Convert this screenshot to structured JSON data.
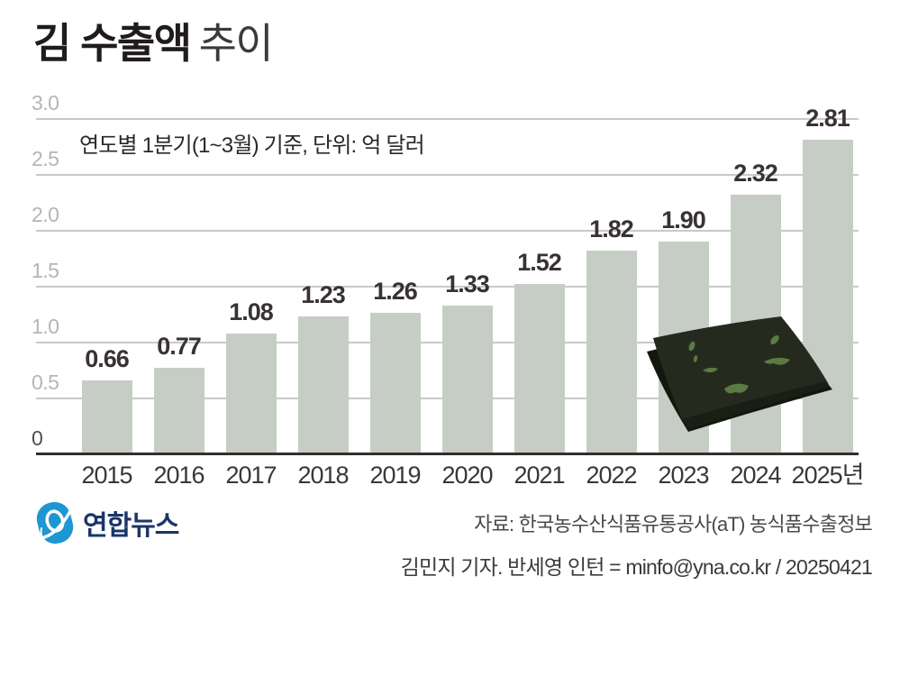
{
  "header": {
    "title_bold": "김 수출액",
    "title_light": "추이"
  },
  "chart_data": {
    "type": "bar",
    "title": "김 수출액 추이",
    "subtitle": "연도별 1분기(1~3월) 기준, 단위: 억 달러",
    "unit": "억 달러",
    "period": "연도별 1분기(1~3월)",
    "categories": [
      "2015",
      "2016",
      "2017",
      "2018",
      "2019",
      "2020",
      "2021",
      "2022",
      "2023",
      "2024",
      "2025년"
    ],
    "values": [
      0.66,
      0.77,
      1.08,
      1.23,
      1.26,
      1.33,
      1.52,
      1.82,
      1.9,
      2.32,
      2.81
    ],
    "value_labels": [
      "0.66",
      "0.77",
      "1.08",
      "1.23",
      "1.26",
      "1.33",
      "1.52",
      "1.82",
      "1.90",
      "2.32",
      "2.81"
    ],
    "ylim": [
      0,
      3.0
    ],
    "yticks": [
      {
        "value": 0,
        "label": "0"
      },
      {
        "value": 0.5,
        "label": "0.5"
      },
      {
        "value": 1.0,
        "label": "1.0"
      },
      {
        "value": 1.5,
        "label": "1.5"
      },
      {
        "value": 2.0,
        "label": "2.0"
      },
      {
        "value": 2.5,
        "label": "2.5"
      },
      {
        "value": 3.0,
        "label": "3.0"
      }
    ],
    "grid": true,
    "legend": "none",
    "bar_color": "#c6cdc5",
    "gridline_color": "#c9c9c9",
    "baseline_color": "#332e2e",
    "value_label_color": "#383232",
    "ytick_color": "#b5b5b5",
    "xtick_color": "#3b3737"
  },
  "footer": {
    "logo_icon": "yonhap-swirl-icon",
    "logo_text": "연합뉴스",
    "logo_blue": "#1e96d2",
    "logo_navy": "#1a3668",
    "source": "자료: 한국농수산식품유통공사(aT) 농식품수출정보",
    "credit": "김민지 기자. 반세영 인턴 = minfo@yna.co.kr / 20250421"
  },
  "decoration": {
    "seaweed_sheet_color": "#262a1e",
    "seaweed_under_color": "#14170e",
    "seaweed_fleck_color": "#5c7a44"
  }
}
